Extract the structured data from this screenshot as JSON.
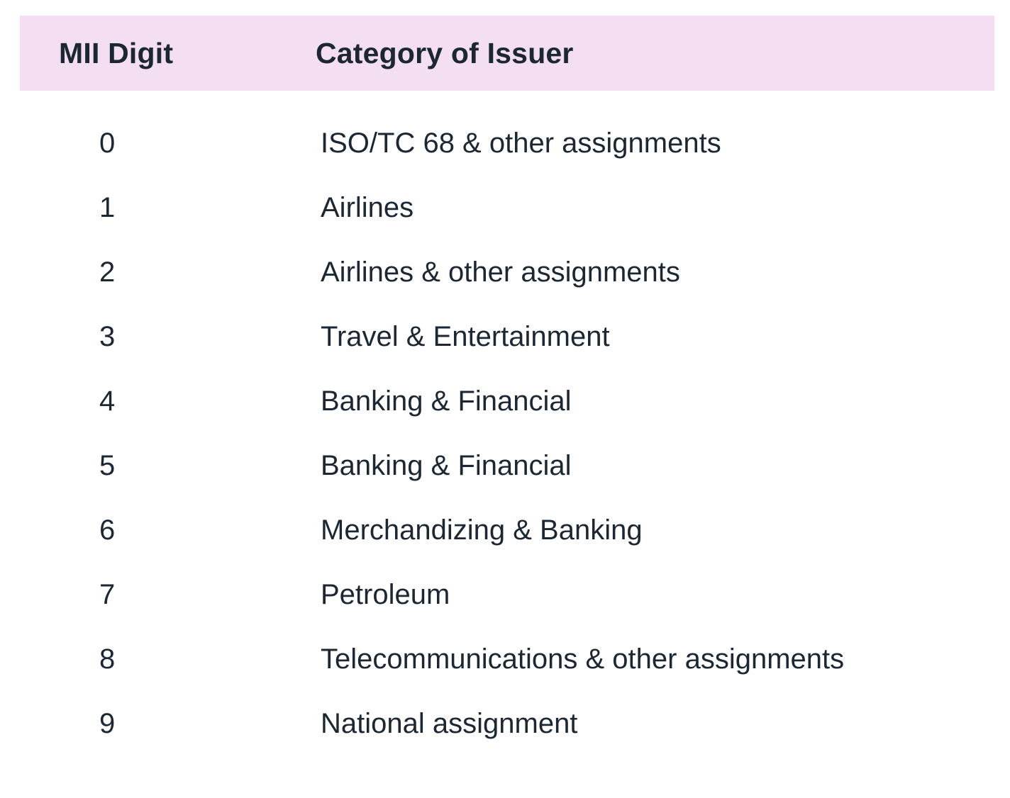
{
  "colors": {
    "header_bg": "#F4DEF1",
    "text": "#1C2734",
    "page_bg": "#FFFFFF"
  },
  "table": {
    "header": {
      "digit_label": "MII Digit",
      "category_label": "Category of Issuer"
    },
    "rows": [
      {
        "digit": "0",
        "category": "ISO/TC 68 & other assignments"
      },
      {
        "digit": "1",
        "category": "Airlines"
      },
      {
        "digit": "2",
        "category": "Airlines & other assignments"
      },
      {
        "digit": "3",
        "category": "Travel & Entertainment"
      },
      {
        "digit": "4",
        "category": "Banking & Financial"
      },
      {
        "digit": "5",
        "category": "Banking & Financial"
      },
      {
        "digit": "6",
        "category": "Merchandizing & Banking"
      },
      {
        "digit": "7",
        "category": "Petroleum"
      },
      {
        "digit": "8",
        "category": "Telecommunications & other assignments"
      },
      {
        "digit": "9",
        "category": "National assignment"
      }
    ]
  }
}
